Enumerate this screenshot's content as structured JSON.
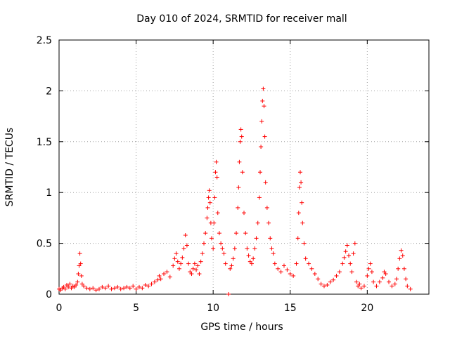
{
  "chart_data": {
    "type": "scatter",
    "title": "Day 010 of 2024, SRMTID for receiver mall",
    "xlabel": "GPS time / hours",
    "ylabel": "SRMTID / TECUs",
    "xlim": [
      0,
      24
    ],
    "ylim": [
      0,
      2.5
    ],
    "x_ticks": [
      0,
      5,
      10,
      15,
      20
    ],
    "x_tick_labels": [
      "0",
      "5",
      "10",
      "15",
      "20"
    ],
    "y_ticks": [
      0,
      0.5,
      1,
      1.5,
      2,
      2.5
    ],
    "y_tick_labels": [
      "0",
      "0.5",
      "1",
      "1.5",
      "2",
      "2.5"
    ],
    "grid": true,
    "marker": "+",
    "color": "#ff0000",
    "series": [
      {
        "name": "SRMTID",
        "points": [
          [
            0.0,
            0.05
          ],
          [
            0.1,
            0.04
          ],
          [
            0.2,
            0.06
          ],
          [
            0.3,
            0.07
          ],
          [
            0.4,
            0.05
          ],
          [
            0.5,
            0.09
          ],
          [
            0.6,
            0.07
          ],
          [
            0.7,
            0.1
          ],
          [
            0.8,
            0.06
          ],
          [
            0.9,
            0.08
          ],
          [
            1.0,
            0.07
          ],
          [
            1.1,
            0.09
          ],
          [
            1.2,
            0.12
          ],
          [
            1.25,
            0.2
          ],
          [
            1.3,
            0.28
          ],
          [
            1.35,
            0.4
          ],
          [
            1.4,
            0.3
          ],
          [
            1.45,
            0.18
          ],
          [
            1.5,
            0.1
          ],
          [
            1.6,
            0.08
          ],
          [
            1.8,
            0.06
          ],
          [
            2.0,
            0.05
          ],
          [
            2.2,
            0.06
          ],
          [
            2.4,
            0.04
          ],
          [
            2.6,
            0.05
          ],
          [
            2.8,
            0.07
          ],
          [
            3.0,
            0.06
          ],
          [
            3.2,
            0.08
          ],
          [
            3.4,
            0.05
          ],
          [
            3.6,
            0.06
          ],
          [
            3.8,
            0.07
          ],
          [
            4.0,
            0.05
          ],
          [
            4.2,
            0.06
          ],
          [
            4.4,
            0.07
          ],
          [
            4.6,
            0.06
          ],
          [
            4.8,
            0.08
          ],
          [
            5.0,
            0.05
          ],
          [
            5.2,
            0.07
          ],
          [
            5.4,
            0.06
          ],
          [
            5.6,
            0.09
          ],
          [
            5.8,
            0.08
          ],
          [
            6.0,
            0.1
          ],
          [
            6.2,
            0.12
          ],
          [
            6.4,
            0.14
          ],
          [
            6.5,
            0.18
          ],
          [
            6.6,
            0.15
          ],
          [
            6.8,
            0.2
          ],
          [
            7.0,
            0.22
          ],
          [
            7.2,
            0.17
          ],
          [
            7.4,
            0.28
          ],
          [
            7.5,
            0.35
          ],
          [
            7.6,
            0.4
          ],
          [
            7.7,
            0.32
          ],
          [
            7.8,
            0.25
          ],
          [
            7.9,
            0.3
          ],
          [
            8.0,
            0.36
          ],
          [
            8.1,
            0.45
          ],
          [
            8.2,
            0.58
          ],
          [
            8.3,
            0.48
          ],
          [
            8.4,
            0.3
          ],
          [
            8.5,
            0.22
          ],
          [
            8.6,
            0.2
          ],
          [
            8.7,
            0.25
          ],
          [
            8.8,
            0.3
          ],
          [
            8.9,
            0.24
          ],
          [
            9.0,
            0.28
          ],
          [
            9.1,
            0.2
          ],
          [
            9.2,
            0.32
          ],
          [
            9.3,
            0.4
          ],
          [
            9.4,
            0.5
          ],
          [
            9.5,
            0.6
          ],
          [
            9.6,
            0.75
          ],
          [
            9.65,
            0.85
          ],
          [
            9.7,
            0.95
          ],
          [
            9.75,
            1.02
          ],
          [
            9.8,
            0.9
          ],
          [
            9.85,
            0.7
          ],
          [
            9.9,
            0.55
          ],
          [
            10.0,
            0.45
          ],
          [
            10.05,
            0.7
          ],
          [
            10.1,
            0.95
          ],
          [
            10.15,
            1.2
          ],
          [
            10.2,
            1.3
          ],
          [
            10.25,
            1.15
          ],
          [
            10.3,
            0.8
          ],
          [
            10.4,
            0.6
          ],
          [
            10.5,
            0.5
          ],
          [
            10.6,
            0.45
          ],
          [
            10.7,
            0.4
          ],
          [
            10.8,
            0.3
          ],
          [
            11.1,
            0.25
          ],
          [
            11.2,
            0.28
          ],
          [
            11.3,
            0.35
          ],
          [
            11.4,
            0.45
          ],
          [
            11.5,
            0.6
          ],
          [
            11.6,
            0.85
          ],
          [
            11.65,
            1.05
          ],
          [
            11.7,
            1.3
          ],
          [
            11.75,
            1.5
          ],
          [
            11.8,
            1.62
          ],
          [
            11.85,
            1.55
          ],
          [
            11.9,
            1.2
          ],
          [
            12.0,
            0.8
          ],
          [
            12.1,
            0.6
          ],
          [
            12.2,
            0.45
          ],
          [
            12.3,
            0.38
          ],
          [
            12.4,
            0.32
          ],
          [
            12.5,
            0.3
          ],
          [
            12.6,
            0.35
          ],
          [
            12.7,
            0.45
          ],
          [
            12.8,
            0.55
          ],
          [
            12.9,
            0.7
          ],
          [
            13.0,
            0.95
          ],
          [
            13.05,
            1.2
          ],
          [
            13.1,
            1.45
          ],
          [
            13.15,
            1.7
          ],
          [
            13.2,
            1.9
          ],
          [
            13.25,
            2.02
          ],
          [
            13.3,
            1.85
          ],
          [
            13.35,
            1.55
          ],
          [
            13.4,
            1.1
          ],
          [
            13.5,
            0.85
          ],
          [
            13.6,
            0.7
          ],
          [
            13.7,
            0.55
          ],
          [
            13.8,
            0.45
          ],
          [
            13.9,
            0.4
          ],
          [
            14.0,
            0.3
          ],
          [
            14.2,
            0.25
          ],
          [
            14.4,
            0.22
          ],
          [
            14.6,
            0.28
          ],
          [
            14.8,
            0.24
          ],
          [
            15.0,
            0.2
          ],
          [
            15.2,
            0.18
          ],
          [
            15.4,
            0.3
          ],
          [
            15.5,
            0.55
          ],
          [
            15.55,
            0.8
          ],
          [
            15.6,
            1.05
          ],
          [
            15.65,
            1.2
          ],
          [
            15.7,
            1.1
          ],
          [
            15.75,
            0.9
          ],
          [
            15.8,
            0.7
          ],
          [
            15.9,
            0.5
          ],
          [
            16.0,
            0.35
          ],
          [
            16.2,
            0.3
          ],
          [
            16.4,
            0.25
          ],
          [
            16.6,
            0.2
          ],
          [
            16.8,
            0.15
          ],
          [
            17.0,
            0.1
          ],
          [
            17.2,
            0.08
          ],
          [
            17.4,
            0.09
          ],
          [
            17.6,
            0.12
          ],
          [
            17.8,
            0.14
          ],
          [
            18.0,
            0.18
          ],
          [
            18.2,
            0.22
          ],
          [
            18.4,
            0.3
          ],
          [
            18.5,
            0.36
          ],
          [
            18.6,
            0.42
          ],
          [
            18.7,
            0.48
          ],
          [
            18.8,
            0.38
          ],
          [
            18.9,
            0.3
          ],
          [
            19.0,
            0.22
          ],
          [
            19.1,
            0.4
          ],
          [
            19.2,
            0.5
          ],
          [
            19.3,
            0.12
          ],
          [
            19.4,
            0.08
          ],
          [
            19.5,
            0.1
          ],
          [
            19.6,
            0.06
          ],
          [
            19.8,
            0.08
          ],
          [
            20.0,
            0.18
          ],
          [
            20.1,
            0.25
          ],
          [
            20.2,
            0.3
          ],
          [
            20.3,
            0.22
          ],
          [
            20.4,
            0.12
          ],
          [
            20.6,
            0.08
          ],
          [
            20.8,
            0.12
          ],
          [
            21.0,
            0.16
          ],
          [
            21.1,
            0.22
          ],
          [
            21.2,
            0.2
          ],
          [
            21.4,
            0.12
          ],
          [
            21.6,
            0.08
          ],
          [
            21.8,
            0.1
          ],
          [
            21.9,
            0.15
          ],
          [
            22.0,
            0.25
          ],
          [
            22.1,
            0.35
          ],
          [
            22.2,
            0.43
          ],
          [
            22.3,
            0.38
          ],
          [
            22.4,
            0.25
          ],
          [
            22.5,
            0.15
          ],
          [
            22.6,
            0.08
          ],
          [
            22.8,
            0.05
          ],
          [
            11.0,
            0.0
          ]
        ]
      }
    ]
  }
}
